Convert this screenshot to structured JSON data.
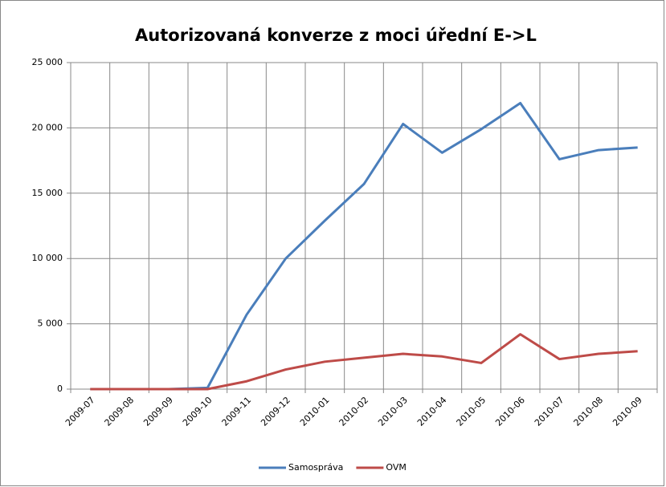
{
  "chart_data": {
    "type": "line",
    "title": "Autorizovaná konverze z moci úřední E->L",
    "categories": [
      "2009-07",
      "2009-08",
      "2009-09",
      "2009-10",
      "2009-11",
      "2009-12",
      "2010-01",
      "2010-02",
      "2010-03",
      "2010-04",
      "2010-05",
      "2010-06",
      "2010-07",
      "2010-08",
      "2010-09"
    ],
    "series": [
      {
        "name": "Samospráva",
        "color": "#4a7ebb",
        "values": [
          0,
          0,
          0,
          100,
          5700,
          10000,
          12900,
          15700,
          20300,
          18100,
          19900,
          21900,
          17600,
          18300,
          18500
        ]
      },
      {
        "name": "OVM",
        "color": "#be4b48",
        "values": [
          0,
          0,
          0,
          0,
          600,
          1500,
          2100,
          2400,
          2700,
          2500,
          2000,
          4200,
          2300,
          2700,
          2900
        ]
      }
    ],
    "ylim": [
      0,
      25000
    ],
    "yticks": [
      0,
      {
        "value": 5000,
        "label": "5 000"
      },
      {
        "value": 10000,
        "label": "10 000"
      },
      {
        "value": 15000,
        "label": "15 000"
      },
      {
        "value": 20000,
        "label": "20 000"
      },
      {
        "value": 25000,
        "label": "25 000"
      }
    ],
    "grid": true,
    "legend": "bottom"
  }
}
